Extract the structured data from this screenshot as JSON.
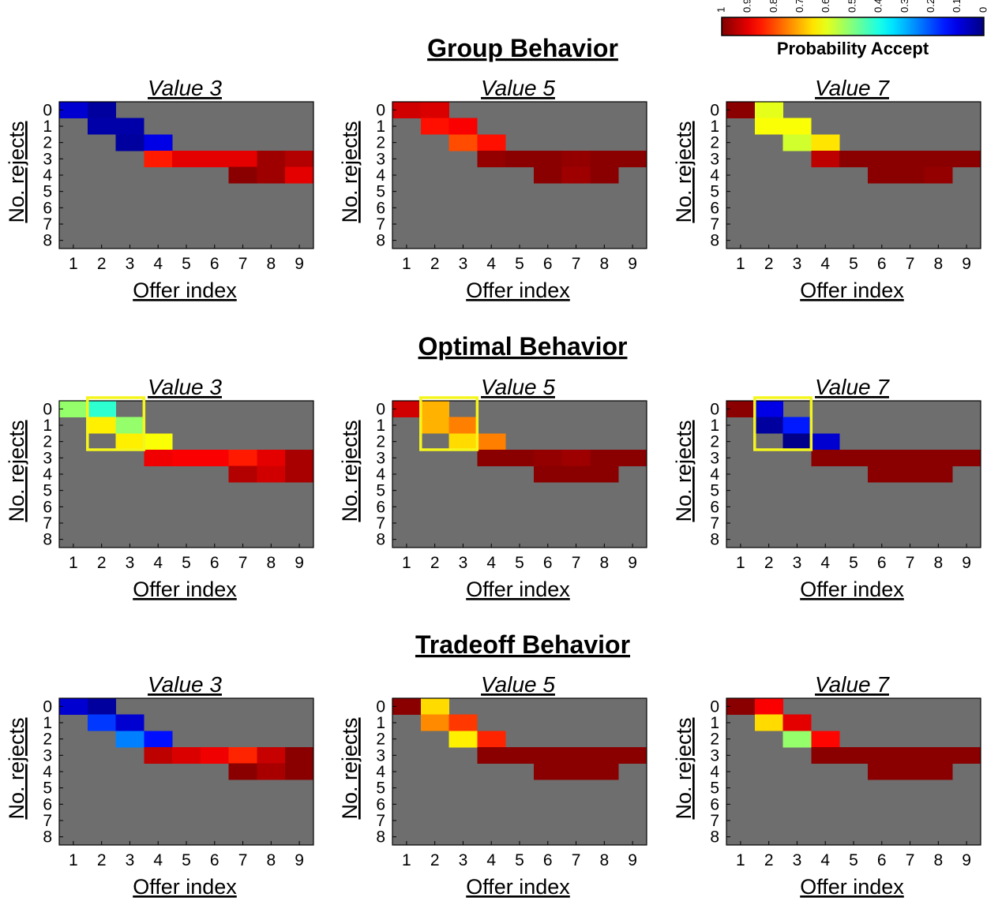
{
  "colorbar": {
    "label": "Probability Accept",
    "ticks": [
      "1",
      "0.9",
      "0.8",
      "0.7",
      "0.6",
      "0.5",
      "0.4",
      "0.3",
      "0.2",
      "0.1",
      "0"
    ]
  },
  "colors": {
    "empty_cell": "#6e6e6e",
    "highlight_box": "#f5f51e"
  },
  "chart_data": [
    {
      "type": "heatmap",
      "section": "Group Behavior",
      "panels": [
        {
          "title": "Value 3",
          "xlabel": "Offer index",
          "ylabel": "No. rejects",
          "x": [
            1,
            2,
            3,
            4,
            5,
            6,
            7,
            8,
            9
          ],
          "y": [
            0,
            1,
            2,
            3,
            4,
            5,
            6,
            7,
            8
          ],
          "cells": [
            {
              "x": 1,
              "y": 0,
              "p": 0.08
            },
            {
              "x": 2,
              "y": 0,
              "p": 0.03
            },
            {
              "x": 2,
              "y": 1,
              "p": 0.04
            },
            {
              "x": 3,
              "y": 1,
              "p": 0.04
            },
            {
              "x": 3,
              "y": 2,
              "p": 0.03
            },
            {
              "x": 4,
              "y": 2,
              "p": 0.1
            },
            {
              "x": 4,
              "y": 3,
              "p": 0.85
            },
            {
              "x": 5,
              "y": 3,
              "p": 0.9
            },
            {
              "x": 6,
              "y": 3,
              "p": 0.9
            },
            {
              "x": 7,
              "y": 3,
              "p": 0.9
            },
            {
              "x": 8,
              "y": 3,
              "p": 0.97
            },
            {
              "x": 9,
              "y": 3,
              "p": 0.95
            },
            {
              "x": 7,
              "y": 4,
              "p": 0.99
            },
            {
              "x": 8,
              "y": 4,
              "p": 0.97
            },
            {
              "x": 9,
              "y": 4,
              "p": 0.9
            }
          ]
        },
        {
          "title": "Value 5",
          "xlabel": "Offer index",
          "ylabel": "No. rejects",
          "x": [
            1,
            2,
            3,
            4,
            5,
            6,
            7,
            8,
            9
          ],
          "y": [
            0,
            1,
            2,
            3,
            4,
            5,
            6,
            7,
            8
          ],
          "cells": [
            {
              "x": 1,
              "y": 0,
              "p": 0.92
            },
            {
              "x": 2,
              "y": 0,
              "p": 0.91
            },
            {
              "x": 2,
              "y": 1,
              "p": 0.86
            },
            {
              "x": 3,
              "y": 1,
              "p": 0.88
            },
            {
              "x": 3,
              "y": 2,
              "p": 0.8
            },
            {
              "x": 4,
              "y": 2,
              "p": 0.86
            },
            {
              "x": 4,
              "y": 3,
              "p": 0.98
            },
            {
              "x": 5,
              "y": 3,
              "p": 0.99
            },
            {
              "x": 6,
              "y": 3,
              "p": 0.99
            },
            {
              "x": 7,
              "y": 3,
              "p": 0.98
            },
            {
              "x": 8,
              "y": 3,
              "p": 0.99
            },
            {
              "x": 9,
              "y": 3,
              "p": 0.99
            },
            {
              "x": 6,
              "y": 4,
              "p": 0.99
            },
            {
              "x": 7,
              "y": 4,
              "p": 0.97
            },
            {
              "x": 8,
              "y": 4,
              "p": 0.99
            }
          ]
        },
        {
          "title": "Value 7",
          "xlabel": "Offer index",
          "ylabel": "No. rejects",
          "x": [
            1,
            2,
            3,
            4,
            5,
            6,
            7,
            8,
            9
          ],
          "y": [
            0,
            1,
            2,
            3,
            4,
            5,
            6,
            7,
            8
          ],
          "cells": [
            {
              "x": 1,
              "y": 0,
              "p": 0.99
            },
            {
              "x": 2,
              "y": 0,
              "p": 0.6
            },
            {
              "x": 2,
              "y": 1,
              "p": 0.62
            },
            {
              "x": 3,
              "y": 1,
              "p": 0.62
            },
            {
              "x": 3,
              "y": 2,
              "p": 0.58
            },
            {
              "x": 4,
              "y": 2,
              "p": 0.65
            },
            {
              "x": 4,
              "y": 3,
              "p": 0.94
            },
            {
              "x": 5,
              "y": 3,
              "p": 0.99
            },
            {
              "x": 6,
              "y": 3,
              "p": 0.99
            },
            {
              "x": 7,
              "y": 3,
              "p": 0.99
            },
            {
              "x": 8,
              "y": 3,
              "p": 0.99
            },
            {
              "x": 9,
              "y": 3,
              "p": 0.99
            },
            {
              "x": 6,
              "y": 4,
              "p": 0.99
            },
            {
              "x": 7,
              "y": 4,
              "p": 0.99
            },
            {
              "x": 8,
              "y": 4,
              "p": 0.98
            }
          ]
        }
      ]
    },
    {
      "type": "heatmap",
      "section": "Optimal Behavior",
      "panels": [
        {
          "title": "Value 3",
          "xlabel": "Offer index",
          "ylabel": "No. rejects",
          "x": [
            1,
            2,
            3,
            4,
            5,
            6,
            7,
            8,
            9
          ],
          "y": [
            0,
            1,
            2,
            3,
            4,
            5,
            6,
            7,
            8
          ],
          "highlight": {
            "x": [
              2,
              3
            ],
            "y": [
              0,
              2
            ]
          },
          "cells": [
            {
              "x": 1,
              "y": 0,
              "p": 0.52
            },
            {
              "x": 2,
              "y": 0,
              "p": 0.42
            },
            {
              "x": 2,
              "y": 1,
              "p": 0.64
            },
            {
              "x": 3,
              "y": 1,
              "p": 0.52
            },
            {
              "x": 3,
              "y": 2,
              "p": 0.64
            },
            {
              "x": 4,
              "y": 2,
              "p": 0.62
            },
            {
              "x": 4,
              "y": 3,
              "p": 0.89
            },
            {
              "x": 5,
              "y": 3,
              "p": 0.88
            },
            {
              "x": 6,
              "y": 3,
              "p": 0.88
            },
            {
              "x": 7,
              "y": 3,
              "p": 0.85
            },
            {
              "x": 8,
              "y": 3,
              "p": 0.9
            },
            {
              "x": 9,
              "y": 3,
              "p": 0.96
            },
            {
              "x": 7,
              "y": 4,
              "p": 0.95
            },
            {
              "x": 8,
              "y": 4,
              "p": 0.92
            },
            {
              "x": 9,
              "y": 4,
              "p": 0.96
            }
          ]
        },
        {
          "title": "Value 5",
          "xlabel": "Offer index",
          "ylabel": "No. rejects",
          "x": [
            1,
            2,
            3,
            4,
            5,
            6,
            7,
            8,
            9
          ],
          "y": [
            0,
            1,
            2,
            3,
            4,
            5,
            6,
            7,
            8
          ],
          "highlight": {
            "x": [
              2,
              3
            ],
            "y": [
              0,
              2
            ]
          },
          "cells": [
            {
              "x": 1,
              "y": 0,
              "p": 0.92
            },
            {
              "x": 2,
              "y": 0,
              "p": 0.7
            },
            {
              "x": 2,
              "y": 1,
              "p": 0.7
            },
            {
              "x": 3,
              "y": 1,
              "p": 0.75
            },
            {
              "x": 3,
              "y": 2,
              "p": 0.66
            },
            {
              "x": 4,
              "y": 2,
              "p": 0.75
            },
            {
              "x": 4,
              "y": 3,
              "p": 0.99
            },
            {
              "x": 5,
              "y": 3,
              "p": 0.99
            },
            {
              "x": 6,
              "y": 3,
              "p": 0.98
            },
            {
              "x": 7,
              "y": 3,
              "p": 0.97
            },
            {
              "x": 8,
              "y": 3,
              "p": 0.99
            },
            {
              "x": 9,
              "y": 3,
              "p": 0.99
            },
            {
              "x": 6,
              "y": 4,
              "p": 0.99
            },
            {
              "x": 7,
              "y": 4,
              "p": 0.99
            },
            {
              "x": 8,
              "y": 4,
              "p": 0.99
            }
          ]
        },
        {
          "title": "Value 7",
          "xlabel": "Offer index",
          "ylabel": "No. rejects",
          "x": [
            1,
            2,
            3,
            4,
            5,
            6,
            7,
            8,
            9
          ],
          "y": [
            0,
            1,
            2,
            3,
            4,
            5,
            6,
            7,
            8
          ],
          "highlight": {
            "x": [
              2,
              3
            ],
            "y": [
              0,
              2
            ]
          },
          "cells": [
            {
              "x": 1,
              "y": 0,
              "p": 0.99
            },
            {
              "x": 2,
              "y": 0,
              "p": 0.1
            },
            {
              "x": 2,
              "y": 1,
              "p": 0.03
            },
            {
              "x": 3,
              "y": 1,
              "p": 0.15
            },
            {
              "x": 3,
              "y": 2,
              "p": 0.01
            },
            {
              "x": 4,
              "y": 2,
              "p": 0.08
            },
            {
              "x": 4,
              "y": 3,
              "p": 0.99
            },
            {
              "x": 5,
              "y": 3,
              "p": 0.99
            },
            {
              "x": 6,
              "y": 3,
              "p": 0.99
            },
            {
              "x": 7,
              "y": 3,
              "p": 0.99
            },
            {
              "x": 8,
              "y": 3,
              "p": 0.99
            },
            {
              "x": 9,
              "y": 3,
              "p": 0.99
            },
            {
              "x": 6,
              "y": 4,
              "p": 0.99
            },
            {
              "x": 7,
              "y": 4,
              "p": 0.99
            },
            {
              "x": 8,
              "y": 4,
              "p": 0.99
            }
          ]
        }
      ]
    },
    {
      "type": "heatmap",
      "section": "Tradeoff Behavior",
      "panels": [
        {
          "title": "Value 3",
          "xlabel": "Offer index",
          "ylabel": "No. rejects",
          "x": [
            1,
            2,
            3,
            4,
            5,
            6,
            7,
            8,
            9
          ],
          "y": [
            0,
            1,
            2,
            3,
            4,
            5,
            6,
            7,
            8
          ],
          "cells": [
            {
              "x": 1,
              "y": 0,
              "p": 0.08
            },
            {
              "x": 2,
              "y": 0,
              "p": 0.03
            },
            {
              "x": 2,
              "y": 1,
              "p": 0.18
            },
            {
              "x": 3,
              "y": 1,
              "p": 0.08
            },
            {
              "x": 3,
              "y": 2,
              "p": 0.25
            },
            {
              "x": 4,
              "y": 2,
              "p": 0.14
            },
            {
              "x": 4,
              "y": 3,
              "p": 0.94
            },
            {
              "x": 5,
              "y": 3,
              "p": 0.91
            },
            {
              "x": 6,
              "y": 3,
              "p": 0.89
            },
            {
              "x": 7,
              "y": 3,
              "p": 0.84
            },
            {
              "x": 8,
              "y": 3,
              "p": 0.93
            },
            {
              "x": 9,
              "y": 3,
              "p": 0.99
            },
            {
              "x": 7,
              "y": 4,
              "p": 0.99
            },
            {
              "x": 8,
              "y": 4,
              "p": 0.96
            },
            {
              "x": 9,
              "y": 4,
              "p": 0.99
            }
          ]
        },
        {
          "title": "Value 5",
          "xlabel": "Offer index",
          "ylabel": "No. rejects",
          "x": [
            1,
            2,
            3,
            4,
            5,
            6,
            7,
            8,
            9
          ],
          "y": [
            0,
            1,
            2,
            3,
            4,
            5,
            6,
            7,
            8
          ],
          "cells": [
            {
              "x": 1,
              "y": 0,
              "p": 0.99
            },
            {
              "x": 2,
              "y": 0,
              "p": 0.66
            },
            {
              "x": 2,
              "y": 1,
              "p": 0.74
            },
            {
              "x": 3,
              "y": 1,
              "p": 0.82
            },
            {
              "x": 3,
              "y": 2,
              "p": 0.64
            },
            {
              "x": 4,
              "y": 2,
              "p": 0.84
            },
            {
              "x": 4,
              "y": 3,
              "p": 0.99
            },
            {
              "x": 5,
              "y": 3,
              "p": 0.99
            },
            {
              "x": 6,
              "y": 3,
              "p": 0.99
            },
            {
              "x": 7,
              "y": 3,
              "p": 0.99
            },
            {
              "x": 8,
              "y": 3,
              "p": 0.99
            },
            {
              "x": 9,
              "y": 3,
              "p": 0.99
            },
            {
              "x": 6,
              "y": 4,
              "p": 0.99
            },
            {
              "x": 7,
              "y": 4,
              "p": 0.99
            },
            {
              "x": 8,
              "y": 4,
              "p": 0.99
            }
          ]
        },
        {
          "title": "Value 7",
          "xlabel": "Offer index",
          "ylabel": "No. rejects",
          "x": [
            1,
            2,
            3,
            4,
            5,
            6,
            7,
            8,
            9
          ],
          "y": [
            0,
            1,
            2,
            3,
            4,
            5,
            6,
            7,
            8
          ],
          "cells": [
            {
              "x": 1,
              "y": 0,
              "p": 0.99
            },
            {
              "x": 2,
              "y": 0,
              "p": 0.88
            },
            {
              "x": 2,
              "y": 1,
              "p": 0.66
            },
            {
              "x": 3,
              "y": 1,
              "p": 0.9
            },
            {
              "x": 3,
              "y": 2,
              "p": 0.52
            },
            {
              "x": 4,
              "y": 2,
              "p": 0.87
            },
            {
              "x": 4,
              "y": 3,
              "p": 0.99
            },
            {
              "x": 5,
              "y": 3,
              "p": 0.99
            },
            {
              "x": 6,
              "y": 3,
              "p": 0.99
            },
            {
              "x": 7,
              "y": 3,
              "p": 0.99
            },
            {
              "x": 8,
              "y": 3,
              "p": 0.99
            },
            {
              "x": 9,
              "y": 3,
              "p": 0.99
            },
            {
              "x": 6,
              "y": 4,
              "p": 0.99
            },
            {
              "x": 7,
              "y": 4,
              "p": 0.99
            },
            {
              "x": 8,
              "y": 4,
              "p": 0.99
            }
          ]
        }
      ]
    }
  ]
}
